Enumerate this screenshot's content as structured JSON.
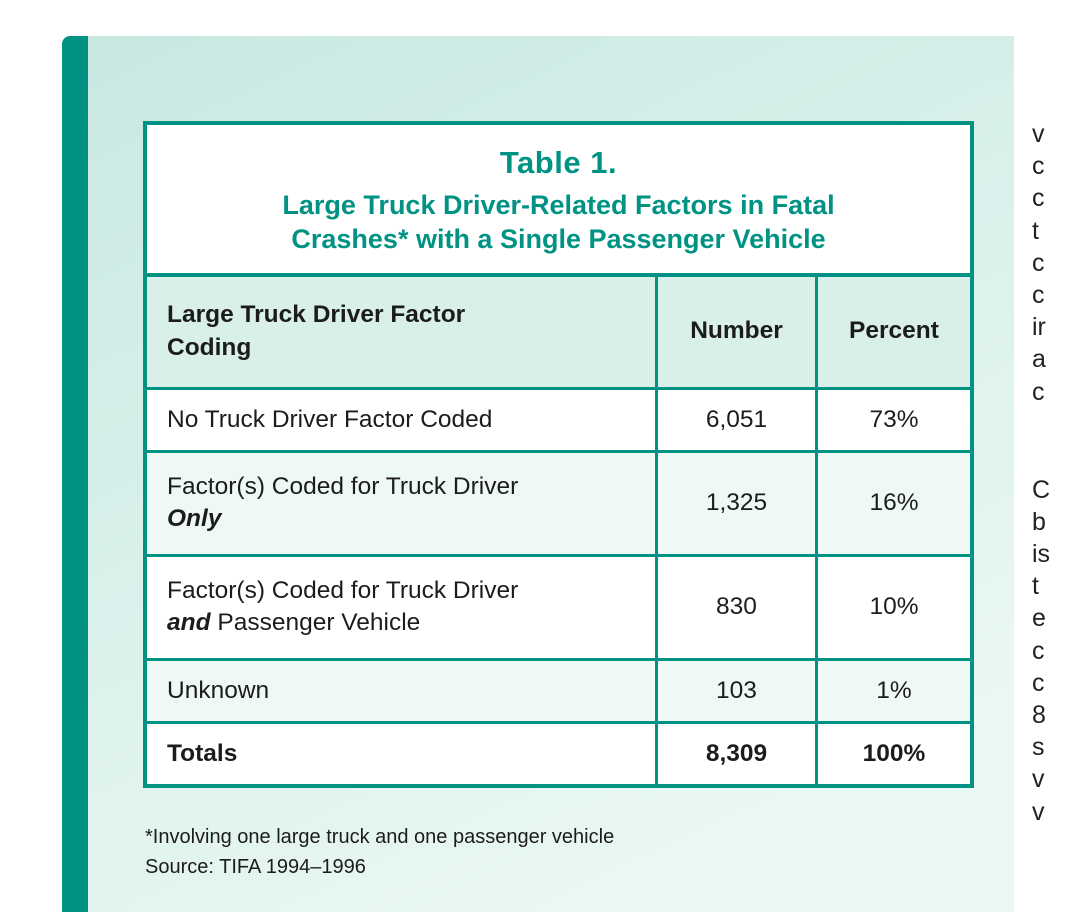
{
  "colors": {
    "accent": "#009384",
    "panel_gradient_top": "#c9e8e2",
    "panel_gradient_bottom": "#eaf8f4",
    "row_tint": "#eef8f5",
    "header_tint": "#d8efea",
    "text": "#1c1c1c"
  },
  "table": {
    "title": "Table 1.",
    "subtitle_line1": "Large Truck Driver-Related Factors in Fatal",
    "subtitle_line2": "Crashes* with a Single Passenger Vehicle",
    "columns": {
      "factor_line1": "Large Truck Driver Factor",
      "factor_line2": "Coding",
      "number": "Number",
      "percent": "Percent"
    },
    "rows": [
      {
        "factor": "No Truck Driver Factor Coded",
        "number": "6,051",
        "percent": "73%"
      },
      {
        "factor": "Factor(s) Coded for Truck Driver",
        "factor_em": "Only",
        "factor_rest": "",
        "number": "1,325",
        "percent": "16%"
      },
      {
        "factor": "Factor(s) Coded for Truck Driver",
        "factor_em": "and",
        "factor_rest": " Passenger Vehicle",
        "number": "830",
        "percent": "10%"
      },
      {
        "factor": "Unknown",
        "number": "103",
        "percent": "1%"
      }
    ],
    "totals": {
      "label": "Totals",
      "number": "8,309",
      "percent": "100%"
    }
  },
  "footnotes": {
    "asterisk": "*Involving one large truck and one passenger vehicle",
    "source": "Source: TIFA 1994–1996"
  },
  "clipped_column": {
    "block1": [
      "v",
      "c",
      "c",
      "t",
      "c",
      "c",
      "ir",
      "a",
      "c"
    ],
    "block2": [
      "C",
      "b",
      "is",
      "t",
      "e",
      "c",
      "c",
      "8",
      "s",
      "v",
      "v"
    ]
  }
}
